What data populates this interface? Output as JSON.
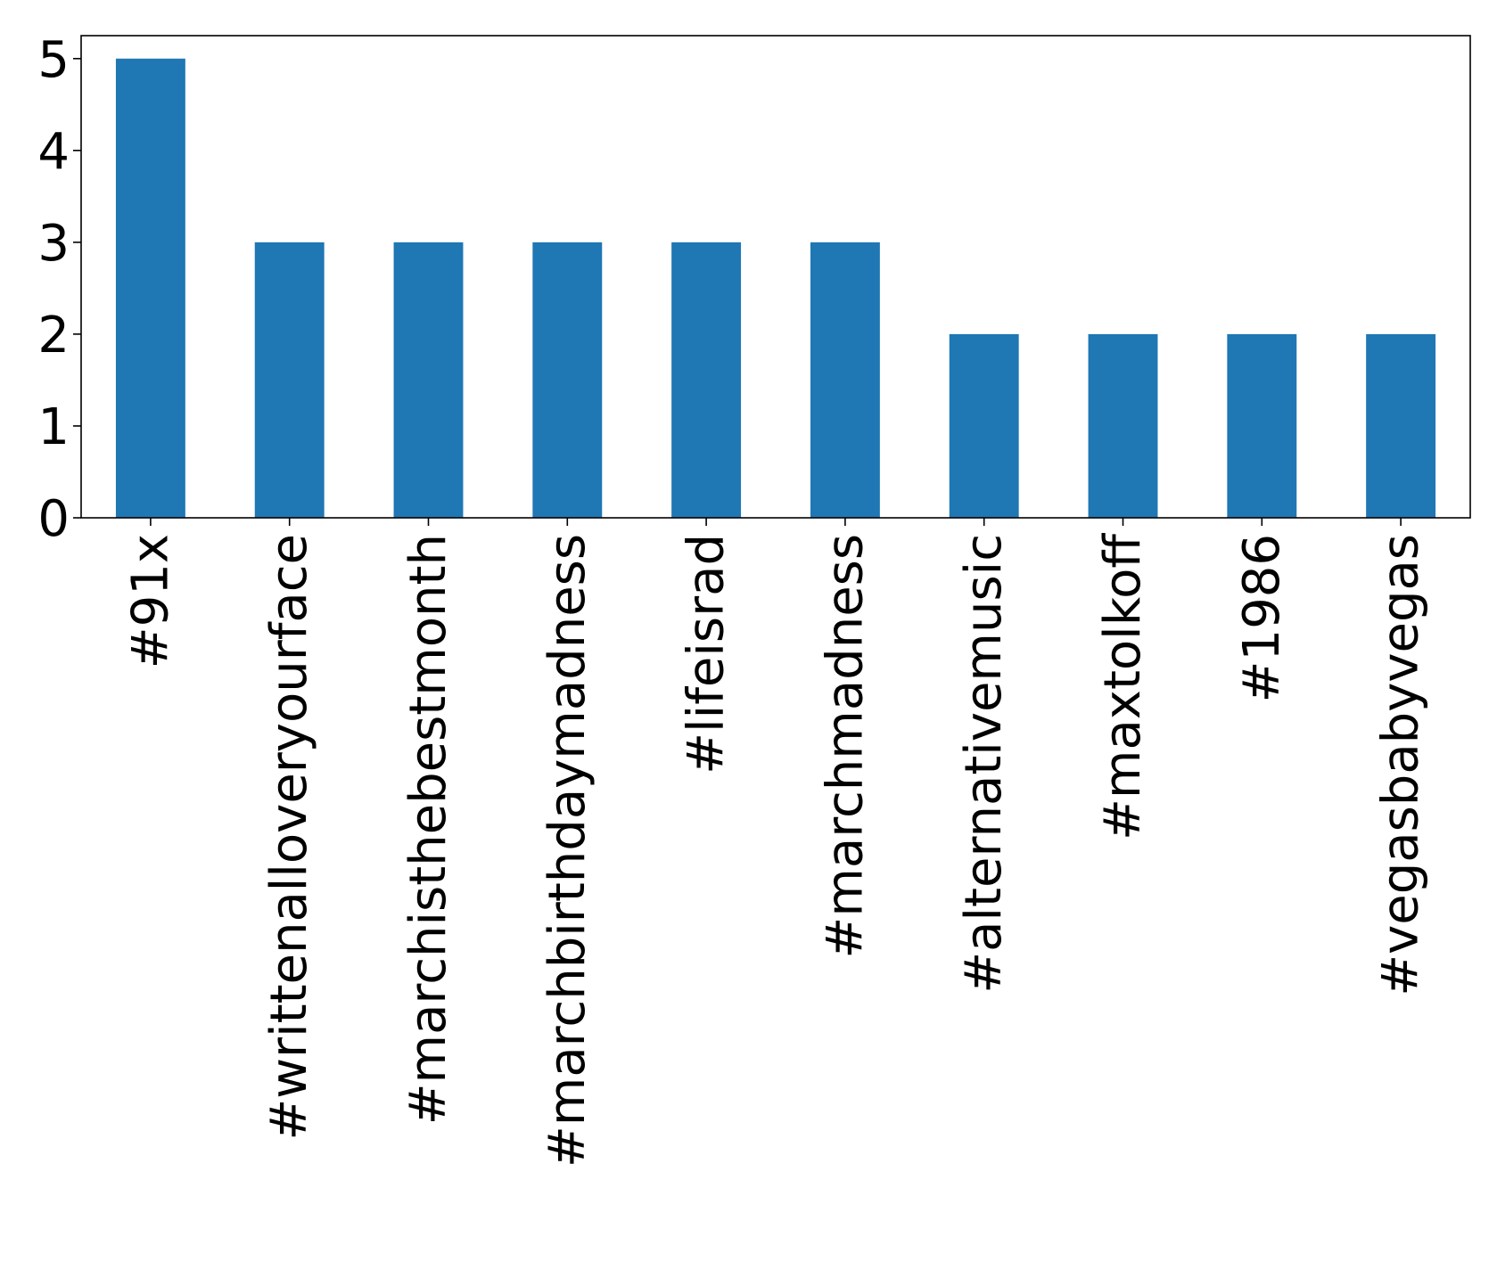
{
  "chart_data": {
    "type": "bar",
    "categories": [
      "#91x",
      "#writtenalloveryourface",
      "#marchisthebestmonth",
      "#marchbirthdaymadness",
      "#lifeisrad",
      "#marchmadness",
      "#alternativemusic",
      "#maxtolkoff",
      "#1986",
      "#vegasbabyvegas"
    ],
    "values": [
      5,
      3,
      3,
      3,
      3,
      3,
      2,
      2,
      2,
      2
    ],
    "ylim": [
      0,
      5.25
    ],
    "yticks": [
      "0",
      "1",
      "2",
      "3",
      "4",
      "5"
    ],
    "grid": false,
    "legend": "none",
    "bar_color": "#1f77b4",
    "axis_color": "#000000"
  }
}
